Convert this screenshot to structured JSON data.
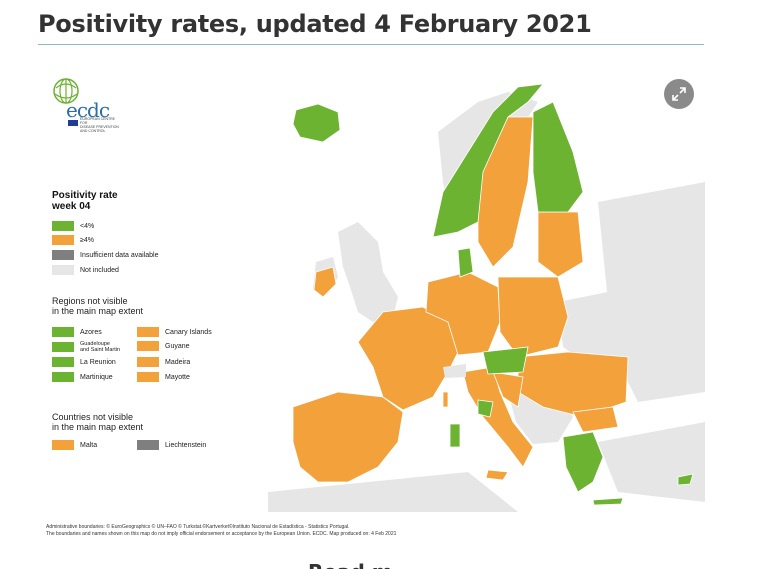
{
  "page": {
    "title": "Positivity rates, updated 4 February 2021",
    "next_heading": "Read m"
  },
  "logo": {
    "name": "ecdc",
    "subtitle_lines": [
      "EUROPEAN CENTRE FOR",
      "DISEASE PREVENTION",
      "AND CONTROL"
    ]
  },
  "expand_icon": "expand-arrows-icon",
  "colors": {
    "below_4": "#6bb331",
    "at_or_above_4": "#f2a13b",
    "insufficient_data": "#7f7f7f",
    "not_included": "#e6e6e6",
    "sea": "#ffffff",
    "border": "#ffffff"
  },
  "legend": {
    "title_lines": [
      "Positivity rate",
      "week 04"
    ],
    "items": [
      {
        "label": "<4%",
        "color": "#6bb331"
      },
      {
        "label": "≥4%",
        "color": "#f2a13b"
      },
      {
        "label": "Insufficient data available",
        "color": "#7f7f7f"
      },
      {
        "label": "Not included",
        "color": "#e6e6e6"
      }
    ],
    "regions_heading": [
      "Regions not visible",
      "in the main map extent"
    ],
    "regions": [
      {
        "label": "Azores",
        "color": "#6bb331"
      },
      {
        "label": "Canary Islands",
        "color": "#f2a13b"
      },
      {
        "label": "Guadeloupe\nand Saint Martin",
        "lines": [
          "Guadeloupe",
          "and Saint Martin"
        ],
        "color": "#6bb331"
      },
      {
        "label": "Guyane",
        "color": "#f2a13b"
      },
      {
        "label": "La Reunion",
        "color": "#6bb331"
      },
      {
        "label": "Madeira",
        "color": "#f2a13b"
      },
      {
        "label": "Martinique",
        "color": "#6bb331"
      },
      {
        "label": "Mayotte",
        "color": "#f2a13b"
      }
    ],
    "countries_heading": [
      "Countries not visible",
      "in the main map extent"
    ],
    "countries": [
      {
        "label": "Malta",
        "color": "#f2a13b"
      },
      {
        "label": "Liechtenstein",
        "color": "#7f7f7f"
      }
    ]
  },
  "footer": {
    "line1": "Administrative boundaries: © EuroGeographics © UN–FAO © Turkstat.©Kartverket©Instituto Nacional de Estadística - Statistics Portugal.",
    "line2": "The boundaries and names shown on this map do not imply official endorsement or acceptance by the European Union. ECDC. Map produced on: 4 Feb 2021"
  }
}
